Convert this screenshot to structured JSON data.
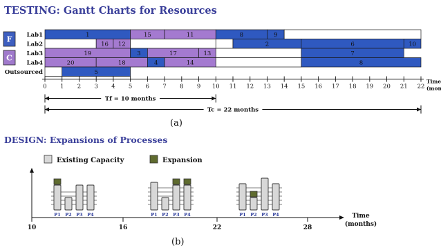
{
  "titles": {
    "testing": "TESTING: Gantt Charts for Resources",
    "design": "DESIGN: Expansions of Processes"
  },
  "chart_data": {
    "type": "gantt",
    "groups": [
      {
        "letter": "F",
        "rows": [
          0,
          1
        ],
        "color": "#3e5fc0"
      },
      {
        "letter": "C",
        "rows": [
          2,
          3
        ],
        "color": "#a07acc"
      }
    ],
    "rows": [
      {
        "name": "Lab1",
        "bars": [
          {
            "label": "1",
            "start": 0,
            "end": 5,
            "color": "#2f59c0"
          },
          {
            "label": "15",
            "start": 5,
            "end": 7,
            "color": "#a47ad0"
          },
          {
            "label": "11",
            "start": 7,
            "end": 10,
            "color": "#a47ad0"
          },
          {
            "label": "8",
            "start": 10,
            "end": 13,
            "color": "#2f59c0"
          },
          {
            "label": "9",
            "start": 13,
            "end": 14,
            "color": "#2f59c0"
          },
          {
            "label": "",
            "start": 14,
            "end": 22,
            "color": "#ffffff"
          }
        ]
      },
      {
        "name": "Lab2",
        "bars": [
          {
            "label": "",
            "start": 0,
            "end": 3,
            "color": "#ffffff"
          },
          {
            "label": "16",
            "start": 3,
            "end": 4,
            "color": "#a47ad0"
          },
          {
            "label": "12",
            "start": 4,
            "end": 5,
            "color": "#a47ad0"
          },
          {
            "label": "",
            "start": 5,
            "end": 10,
            "color": "#ffffff"
          },
          {
            "label": "",
            "start": 10,
            "end": 11,
            "color": "#ffffff"
          },
          {
            "label": "2",
            "start": 11,
            "end": 15,
            "color": "#2f59c0"
          },
          {
            "label": "6",
            "start": 15,
            "end": 21,
            "color": "#2f59c0"
          },
          {
            "label": "10",
            "start": 21,
            "end": 22,
            "color": "#2f59c0"
          }
        ]
      },
      {
        "name": "Lab3",
        "bars": [
          {
            "label": "19",
            "start": 0,
            "end": 5,
            "color": "#a47ad0"
          },
          {
            "label": "3",
            "start": 5,
            "end": 6,
            "color": "#2f59c0"
          },
          {
            "label": "17",
            "start": 6,
            "end": 9,
            "color": "#a47ad0"
          },
          {
            "label": "13",
            "start": 9,
            "end": 10,
            "color": "#a47ad0"
          },
          {
            "label": "",
            "start": 10,
            "end": 15,
            "color": "#ffffff"
          },
          {
            "label": "7",
            "start": 15,
            "end": 21,
            "color": "#2f59c0"
          }
        ]
      },
      {
        "name": "Lab4",
        "bars": [
          {
            "label": "20",
            "start": 0,
            "end": 3,
            "color": "#a47ad0"
          },
          {
            "label": "18",
            "start": 3,
            "end": 6,
            "color": "#a47ad0"
          },
          {
            "label": "4",
            "start": 6,
            "end": 7,
            "color": "#2f59c0"
          },
          {
            "label": "14",
            "start": 7,
            "end": 10,
            "color": "#a47ad0"
          },
          {
            "label": "",
            "start": 10,
            "end": 15,
            "color": "#ffffff"
          },
          {
            "label": "8",
            "start": 15,
            "end": 22,
            "color": "#2f59c0"
          }
        ]
      },
      {
        "name": "Outsourced",
        "bars": [
          {
            "label": "",
            "start": 0,
            "end": 1,
            "color": "#ffffff"
          },
          {
            "label": "5",
            "start": 1,
            "end": 5,
            "color": "#2f59c0"
          }
        ]
      }
    ],
    "x_ticks": [
      "0",
      "1",
      "2",
      "3",
      "4",
      "5",
      "6",
      "7",
      "8",
      "9",
      "10",
      "11",
      "12",
      "13",
      "14",
      "15",
      "16",
      "17",
      "18",
      "19",
      "20",
      "21",
      "22"
    ],
    "xlim": [
      0,
      22
    ],
    "xlabel": "Time (months)",
    "spans": [
      {
        "label": "Tf = 10 months",
        "start": 0,
        "end": 10
      },
      {
        "label": "Tc = 22 months",
        "start": 0,
        "end": 22
      }
    ]
  },
  "caption_a": "(a)",
  "legend": {
    "existing": "Existing Capacity",
    "expansion": "Expansion",
    "existing_color": "#d8d8d8",
    "expansion_color": "#5f6b2f"
  },
  "process_axis": {
    "ticks": [
      "10",
      "16",
      "22",
      "28"
    ],
    "xlabel": "Time\n(months)"
  },
  "process_groups": [
    {
      "labels": [
        "P1",
        "P2",
        "P3",
        "P4"
      ],
      "heights": [
        0.9,
        0.45,
        0.9,
        0.9
      ],
      "expansions": [
        0
      ]
    },
    {
      "labels": [
        "P1",
        "P2",
        "P3",
        "P4"
      ],
      "heights": [
        1.0,
        0.45,
        0.9,
        0.9
      ],
      "expansions": [
        2,
        3
      ]
    },
    {
      "labels": [
        "P1",
        "P2",
        "P3",
        "P4"
      ],
      "heights": [
        0.95,
        0.45,
        1.15,
        0.95
      ],
      "expansions": [
        1
      ]
    }
  ],
  "caption_b": "(b)"
}
